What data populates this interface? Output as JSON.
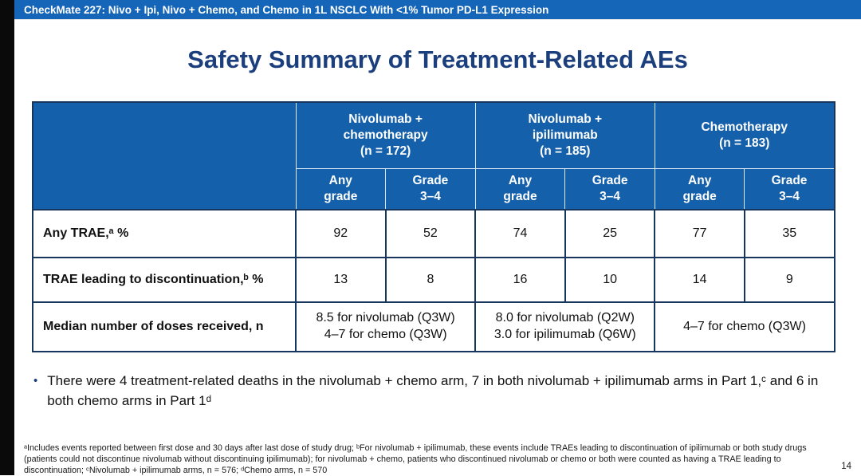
{
  "colors": {
    "top_bar_blue": "#1565b8",
    "table_header_blue": "#1560ab",
    "title_navy": "#1b3f7d",
    "table_border_navy": "#17365d",
    "left_strip_black": "#0a0a0a"
  },
  "top_bar": {
    "text": "CheckMate 227: Nivo + Ipi, Nivo + Chemo, and Chemo in 1L NSCLC With <1% Tumor PD-L1 Expression"
  },
  "title": "Safety Summary of Treatment-Related AEs",
  "table": {
    "groups": [
      {
        "header": "Nivolumab +\nchemotherapy\n(n = 172)"
      },
      {
        "header": "Nivolumab +\nipilimumab\n(n = 185)"
      },
      {
        "header": "Chemotherapy\n(n = 183)"
      }
    ],
    "sub_headers": [
      "Any\ngrade",
      "Grade\n3–4",
      "Any\ngrade",
      "Grade\n3–4",
      "Any\ngrade",
      "Grade\n3–4"
    ],
    "rows": [
      {
        "label": "Any TRAE,ᵃ %",
        "values": [
          "92",
          "52",
          "74",
          "25",
          "77",
          "35"
        ]
      },
      {
        "label": "TRAE leading to discontinuation,ᵇ %",
        "values": [
          "13",
          "8",
          "16",
          "10",
          "14",
          "9"
        ]
      },
      {
        "label": "Median number of doses received, n",
        "span_values": [
          "8.5 for nivolumab (Q3W)\n4–7 for chemo (Q3W)",
          "8.0 for nivolumab (Q2W)\n3.0 for ipilimumab (Q6W)",
          "4–7 for chemo (Q3W)"
        ]
      }
    ]
  },
  "bullet": {
    "marker": "•",
    "text": "There were 4 treatment-related deaths in the nivolumab + chemo arm, 7 in both nivolumab + ipilimumab arms in Part 1,ᶜ and 6 in both chemo arms in Part 1ᵈ"
  },
  "footnote": "ᵃIncludes events reported between first dose and 30 days after last dose of study drug; ᵇFor nivolumab + ipilimumab, these events include TRAEs leading to discontinuation of ipilimumab or both study drugs (patients could not discontinue nivolumab without discontinuing ipilimumab); for nivolumab + chemo, patients who discontinued nivolumab or chemo or both were counted as having a TRAE leading to discontinuation; ᶜNivolumab + ipilimumab arms, n = 576; ᵈChemo arms, n = 570",
  "page_number": "14"
}
